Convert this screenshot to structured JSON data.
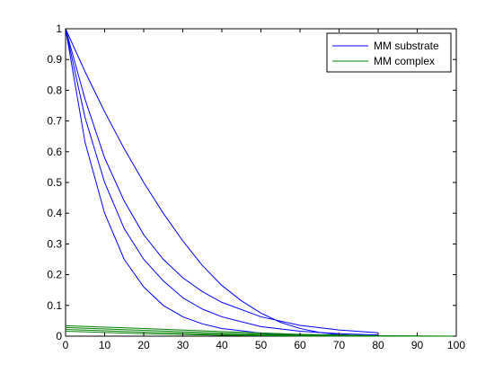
{
  "chart_data": {
    "type": "line",
    "title": "",
    "xlabel": "",
    "ylabel": "",
    "xlim": [
      0,
      100
    ],
    "ylim": [
      0,
      1
    ],
    "x_ticks": [
      "0",
      "10",
      "20",
      "30",
      "40",
      "50",
      "60",
      "70",
      "80",
      "90",
      "100"
    ],
    "y_ticks": [
      "0",
      "0.1",
      "0.2",
      "0.3",
      "0.4",
      "0.5",
      "0.6",
      "0.7",
      "0.8",
      "0.9",
      "1"
    ],
    "grid": false,
    "legend_position": "top-right",
    "legend": [
      {
        "label": "MM substrate",
        "color": "#0000ff"
      },
      {
        "label": "MM complex",
        "color": "#008000"
      }
    ],
    "series": [
      {
        "group": "MM substrate",
        "color": "#0000ff",
        "points": [
          [
            0,
            1.0
          ],
          [
            5,
            0.63
          ],
          [
            10,
            0.4
          ],
          [
            15,
            0.25
          ],
          [
            20,
            0.16
          ],
          [
            25,
            0.1
          ],
          [
            30,
            0.063
          ],
          [
            35,
            0.04
          ],
          [
            40,
            0.025
          ],
          [
            50,
            0.01
          ],
          [
            60,
            0.004
          ],
          [
            70,
            0.002
          ],
          [
            80,
            0.0005
          ]
        ]
      },
      {
        "group": "MM substrate",
        "color": "#0000ff",
        "points": [
          [
            0,
            1.0
          ],
          [
            5,
            0.71
          ],
          [
            10,
            0.5
          ],
          [
            15,
            0.35
          ],
          [
            20,
            0.25
          ],
          [
            25,
            0.18
          ],
          [
            30,
            0.125
          ],
          [
            35,
            0.088
          ],
          [
            40,
            0.063
          ],
          [
            50,
            0.031
          ],
          [
            60,
            0.016
          ],
          [
            70,
            0.008
          ],
          [
            80,
            0.004
          ]
        ]
      },
      {
        "group": "MM substrate",
        "color": "#0000ff",
        "points": [
          [
            0,
            1.0
          ],
          [
            5,
            0.77
          ],
          [
            10,
            0.58
          ],
          [
            15,
            0.44
          ],
          [
            20,
            0.33
          ],
          [
            25,
            0.25
          ],
          [
            30,
            0.19
          ],
          [
            35,
            0.145
          ],
          [
            40,
            0.11
          ],
          [
            50,
            0.063
          ],
          [
            60,
            0.035
          ],
          [
            70,
            0.02
          ],
          [
            80,
            0.011
          ]
        ]
      },
      {
        "group": "MM substrate",
        "color": "#0000ff",
        "points": [
          [
            0,
            1.0
          ],
          [
            5,
            0.86
          ],
          [
            10,
            0.73
          ],
          [
            15,
            0.61
          ],
          [
            20,
            0.5
          ],
          [
            25,
            0.4
          ],
          [
            30,
            0.31
          ],
          [
            35,
            0.23
          ],
          [
            40,
            0.165
          ],
          [
            45,
            0.115
          ],
          [
            50,
            0.075
          ],
          [
            55,
            0.045
          ],
          [
            60,
            0.025
          ],
          [
            65,
            0.012
          ],
          [
            70,
            0.005
          ],
          [
            75,
            0.002
          ],
          [
            80,
            0.0
          ]
        ]
      },
      {
        "group": "MM complex",
        "color": "#008000",
        "points": [
          [
            0,
            0.034
          ],
          [
            20,
            0.025
          ],
          [
            40,
            0.015
          ],
          [
            60,
            0.006
          ],
          [
            80,
            0.0015
          ],
          [
            100,
            0.0
          ]
        ]
      },
      {
        "group": "MM complex",
        "color": "#008000",
        "points": [
          [
            0,
            0.028
          ],
          [
            20,
            0.019
          ],
          [
            40,
            0.01
          ],
          [
            60,
            0.003
          ],
          [
            80,
            0.0005
          ],
          [
            100,
            0.0
          ]
        ]
      },
      {
        "group": "MM complex",
        "color": "#008000",
        "points": [
          [
            0,
            0.022
          ],
          [
            20,
            0.013
          ],
          [
            40,
            0.006
          ],
          [
            60,
            0.0015
          ],
          [
            80,
            0.0002
          ],
          [
            100,
            0.0
          ]
        ]
      },
      {
        "group": "MM complex",
        "color": "#008000",
        "points": [
          [
            0,
            0.016
          ],
          [
            20,
            0.008
          ],
          [
            40,
            0.003
          ],
          [
            60,
            0.0005
          ],
          [
            80,
            0.0
          ],
          [
            100,
            0.0
          ]
        ]
      }
    ]
  }
}
